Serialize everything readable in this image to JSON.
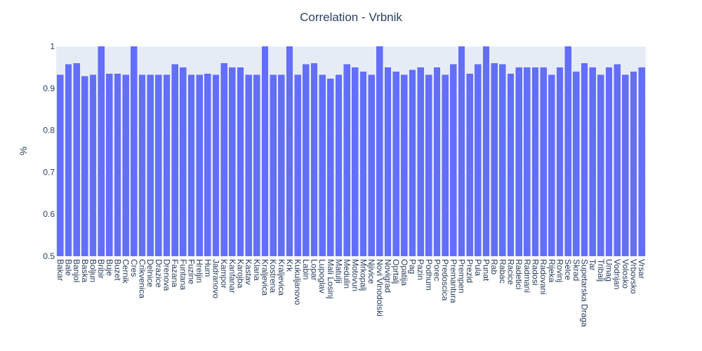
{
  "chart_data": {
    "type": "bar",
    "title": "Correlation - Vrbnik",
    "xlabel": "",
    "ylabel": "%",
    "ylim": [
      0.5,
      1.0
    ],
    "yticks": [
      "0.5",
      "0.6",
      "0.7",
      "0.8",
      "0.9",
      "1"
    ],
    "grid": true,
    "colors": {
      "bar": "#636efa",
      "plot_bg": "#e5ecf6",
      "text": "#2a3f5f"
    },
    "categories": [
      "Bakar",
      "Bale",
      "Banjol",
      "Baska",
      "Boljun",
      "Bribir",
      "Buje",
      "Buzet",
      "Cernik",
      "Cres",
      "Crikvenica",
      "Delnice",
      "Drazice",
      "Drenova",
      "Fazana",
      "Funtana",
      "Fuzine",
      "Hreljin",
      "Hum",
      "Jadranovo",
      "Kampor",
      "Kanfanar",
      "Karojba",
      "Kastav",
      "Klana",
      "Kraljevica",
      "Kostrena",
      "Kraljevica",
      "Krk",
      "Kukuljanovo",
      "Labin",
      "Lopar",
      "Lupoglav",
      "Mali Losinj",
      "Matulji",
      "Medulin",
      "Motovun",
      "Mrkopalj",
      "Njivice",
      "Novi Vinodolski",
      "Novigrad",
      "Oprtalj",
      "Opatija",
      "Pag",
      "Pazin",
      "Podhum",
      "Porec",
      "Predoscica",
      "Premantura",
      "Prempen",
      "Prezid",
      "Pula",
      "Punat",
      "Rab",
      "Rabac",
      "Racice",
      "Radetici",
      "Radmani",
      "Radosi",
      "Radovani",
      "Rijeka",
      "Rovinj",
      "Selce",
      "Skrad",
      "Supetarska Draga",
      "Tar",
      "Tribalj",
      "Umag",
      "Vodnjan",
      "Volosko",
      "Vrbovsko",
      "Vrsar"
    ],
    "values": [
      0.932,
      0.957,
      0.96,
      0.929,
      0.932,
      1.0,
      0.935,
      0.935,
      0.932,
      1.0,
      0.932,
      0.932,
      0.932,
      0.932,
      0.957,
      0.95,
      0.932,
      0.932,
      0.935,
      0.932,
      0.96,
      0.95,
      0.95,
      0.932,
      0.932,
      1.0,
      0.932,
      0.932,
      1.0,
      0.932,
      0.957,
      0.96,
      0.932,
      0.923,
      0.932,
      0.957,
      0.95,
      0.94,
      0.932,
      1.0,
      0.95,
      0.94,
      0.932,
      0.944,
      0.95,
      0.932,
      0.95,
      0.932,
      0.957,
      1.0,
      0.935,
      0.957,
      1.0,
      0.96,
      0.957,
      0.935,
      0.95,
      0.95,
      0.95,
      0.95,
      0.932,
      0.95,
      1.0,
      0.94,
      0.96,
      0.95,
      0.932,
      0.95,
      0.957,
      0.932,
      0.94,
      0.95
    ]
  }
}
